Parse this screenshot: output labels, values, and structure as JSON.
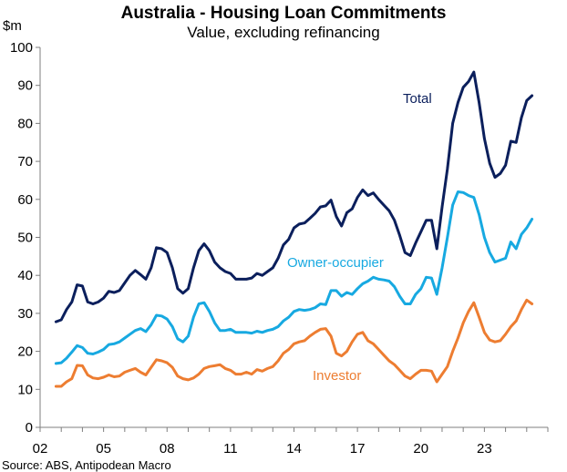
{
  "chart_data": {
    "type": "line",
    "title": "Australia - Housing Loan Commitments",
    "subtitle": "Value, excluding refinancing",
    "ylabel": "$m",
    "ylim": [
      0,
      100
    ],
    "yticks": [
      0,
      10,
      20,
      30,
      40,
      50,
      60,
      70,
      80,
      90,
      100
    ],
    "xlim": [
      2002,
      2026
    ],
    "xticks": [
      {
        "value": 2002,
        "label": "02"
      },
      {
        "value": 2005,
        "label": "05"
      },
      {
        "value": 2008,
        "label": "08"
      },
      {
        "value": 2011,
        "label": "11"
      },
      {
        "value": 2014,
        "label": "14"
      },
      {
        "value": 2017,
        "label": "17"
      },
      {
        "value": 2020,
        "label": "20"
      },
      {
        "value": 2023,
        "label": "23"
      }
    ],
    "grid": false,
    "source": "Source: ABS, Antipodean Macro",
    "series": [
      {
        "name": "Total",
        "color": "#0b1f5c",
        "points": [
          [
            2002.75,
            27.8
          ],
          [
            2003.0,
            28.3
          ],
          [
            2003.25,
            31
          ],
          [
            2003.5,
            33
          ],
          [
            2003.75,
            37.5
          ],
          [
            2004.0,
            37.2
          ],
          [
            2004.25,
            33
          ],
          [
            2004.5,
            32.5
          ],
          [
            2004.75,
            33
          ],
          [
            2005.0,
            34
          ],
          [
            2005.25,
            35.8
          ],
          [
            2005.5,
            35.5
          ],
          [
            2005.75,
            36
          ],
          [
            2006.0,
            38
          ],
          [
            2006.25,
            40
          ],
          [
            2006.5,
            41.3
          ],
          [
            2006.75,
            40.2
          ],
          [
            2007.0,
            39
          ],
          [
            2007.25,
            42
          ],
          [
            2007.5,
            47.3
          ],
          [
            2007.75,
            47
          ],
          [
            2008.0,
            46
          ],
          [
            2008.25,
            42
          ],
          [
            2008.5,
            36.5
          ],
          [
            2008.75,
            35.3
          ],
          [
            2009.0,
            36.5
          ],
          [
            2009.25,
            42
          ],
          [
            2009.5,
            46.5
          ],
          [
            2009.75,
            48.3
          ],
          [
            2010.0,
            46.5
          ],
          [
            2010.25,
            43.5
          ],
          [
            2010.5,
            42
          ],
          [
            2010.75,
            41
          ],
          [
            2011.0,
            40.5
          ],
          [
            2011.25,
            39
          ],
          [
            2011.5,
            39
          ],
          [
            2011.75,
            39
          ],
          [
            2012.0,
            39.3
          ],
          [
            2012.25,
            40.5
          ],
          [
            2012.5,
            40
          ],
          [
            2012.75,
            41
          ],
          [
            2013.0,
            42
          ],
          [
            2013.25,
            44.5
          ],
          [
            2013.5,
            48
          ],
          [
            2013.75,
            49.5
          ],
          [
            2014.0,
            52.5
          ],
          [
            2014.25,
            53.5
          ],
          [
            2014.5,
            53.8
          ],
          [
            2014.75,
            55
          ],
          [
            2015.0,
            56.3
          ],
          [
            2015.25,
            58
          ],
          [
            2015.5,
            58.3
          ],
          [
            2015.75,
            59.8
          ],
          [
            2016.0,
            55.5
          ],
          [
            2016.25,
            53
          ],
          [
            2016.5,
            56.5
          ],
          [
            2016.75,
            57.5
          ],
          [
            2017.0,
            60.5
          ],
          [
            2017.25,
            62.5
          ],
          [
            2017.5,
            61
          ],
          [
            2017.75,
            61.7
          ],
          [
            2018.0,
            60
          ],
          [
            2018.25,
            58.5
          ],
          [
            2018.5,
            57
          ],
          [
            2018.75,
            54.5
          ],
          [
            2019.0,
            50.5
          ],
          [
            2019.25,
            46
          ],
          [
            2019.5,
            45.2
          ],
          [
            2019.75,
            48.5
          ],
          [
            2020.0,
            51.5
          ],
          [
            2020.25,
            54.5
          ],
          [
            2020.5,
            54.5
          ],
          [
            2020.75,
            47
          ],
          [
            2021.0,
            58
          ],
          [
            2021.25,
            68
          ],
          [
            2021.5,
            80
          ],
          [
            2021.75,
            85.5
          ],
          [
            2022.0,
            89.5
          ],
          [
            2022.25,
            91
          ],
          [
            2022.5,
            93.5
          ],
          [
            2022.75,
            85.5
          ],
          [
            2023.0,
            76
          ],
          [
            2023.25,
            69.5
          ],
          [
            2023.5,
            65.8
          ],
          [
            2023.75,
            66.8
          ],
          [
            2024.0,
            69
          ],
          [
            2024.25,
            75.3
          ],
          [
            2024.5,
            75
          ],
          [
            2024.75,
            81.5
          ],
          [
            2025.0,
            86
          ],
          [
            2025.25,
            87.3
          ]
        ]
      },
      {
        "name": "Owner-occupier",
        "color": "#17a9e1",
        "points": [
          [
            2002.75,
            16.8
          ],
          [
            2003.0,
            17
          ],
          [
            2003.25,
            18.2
          ],
          [
            2003.5,
            19.8
          ],
          [
            2003.75,
            21.5
          ],
          [
            2004.0,
            21
          ],
          [
            2004.25,
            19.5
          ],
          [
            2004.5,
            19.3
          ],
          [
            2004.75,
            19.8
          ],
          [
            2005.0,
            20.5
          ],
          [
            2005.25,
            21.8
          ],
          [
            2005.5,
            22
          ],
          [
            2005.75,
            22.5
          ],
          [
            2006.0,
            23.5
          ],
          [
            2006.25,
            24.5
          ],
          [
            2006.5,
            25.5
          ],
          [
            2006.75,
            26
          ],
          [
            2007.0,
            25.2
          ],
          [
            2007.25,
            27
          ],
          [
            2007.5,
            29.5
          ],
          [
            2007.75,
            29.3
          ],
          [
            2008.0,
            28.5
          ],
          [
            2008.25,
            26.5
          ],
          [
            2008.5,
            23.3
          ],
          [
            2008.75,
            22.5
          ],
          [
            2009.0,
            24
          ],
          [
            2009.25,
            29
          ],
          [
            2009.5,
            32.5
          ],
          [
            2009.75,
            32.8
          ],
          [
            2010.0,
            30.5
          ],
          [
            2010.25,
            27.5
          ],
          [
            2010.5,
            25.5
          ],
          [
            2010.75,
            25.5
          ],
          [
            2011.0,
            25.8
          ],
          [
            2011.25,
            25
          ],
          [
            2011.5,
            25
          ],
          [
            2011.75,
            25
          ],
          [
            2012.0,
            24.8
          ],
          [
            2012.25,
            25.3
          ],
          [
            2012.5,
            25
          ],
          [
            2012.75,
            25.5
          ],
          [
            2013.0,
            25.8
          ],
          [
            2013.25,
            26.5
          ],
          [
            2013.5,
            28
          ],
          [
            2013.75,
            29
          ],
          [
            2014.0,
            30.5
          ],
          [
            2014.25,
            31
          ],
          [
            2014.5,
            30.8
          ],
          [
            2014.75,
            31
          ],
          [
            2015.0,
            31.5
          ],
          [
            2015.25,
            32.5
          ],
          [
            2015.5,
            32.3
          ],
          [
            2015.75,
            36
          ],
          [
            2016.0,
            36
          ],
          [
            2016.25,
            34.5
          ],
          [
            2016.5,
            35.5
          ],
          [
            2016.75,
            35
          ],
          [
            2017.0,
            36.5
          ],
          [
            2017.25,
            37.8
          ],
          [
            2017.5,
            38.5
          ],
          [
            2017.75,
            39.5
          ],
          [
            2018.0,
            39
          ],
          [
            2018.25,
            38.8
          ],
          [
            2018.5,
            38.5
          ],
          [
            2018.75,
            37
          ],
          [
            2019.0,
            34.5
          ],
          [
            2019.25,
            32.5
          ],
          [
            2019.5,
            32.5
          ],
          [
            2019.75,
            35
          ],
          [
            2020.0,
            36.5
          ],
          [
            2020.25,
            39.5
          ],
          [
            2020.5,
            39.3
          ],
          [
            2020.75,
            35
          ],
          [
            2021.0,
            42
          ],
          [
            2021.25,
            50
          ],
          [
            2021.5,
            58.5
          ],
          [
            2021.75,
            62
          ],
          [
            2022.0,
            61.8
          ],
          [
            2022.25,
            61
          ],
          [
            2022.5,
            60.5
          ],
          [
            2022.75,
            56
          ],
          [
            2023.0,
            50
          ],
          [
            2023.25,
            46
          ],
          [
            2023.5,
            43.5
          ],
          [
            2023.75,
            44
          ],
          [
            2024.0,
            44.5
          ],
          [
            2024.25,
            48.8
          ],
          [
            2024.5,
            47
          ],
          [
            2024.75,
            50.8
          ],
          [
            2025.0,
            52.5
          ],
          [
            2025.25,
            54.8
          ]
        ]
      },
      {
        "name": "Investor",
        "color": "#ed7d31",
        "points": [
          [
            2002.75,
            10.8
          ],
          [
            2003.0,
            10.8
          ],
          [
            2003.25,
            12
          ],
          [
            2003.5,
            12.8
          ],
          [
            2003.75,
            16.3
          ],
          [
            2004.0,
            16.2
          ],
          [
            2004.25,
            13.8
          ],
          [
            2004.5,
            13
          ],
          [
            2004.75,
            12.8
          ],
          [
            2005.0,
            13.2
          ],
          [
            2005.25,
            13.8
          ],
          [
            2005.5,
            13.3
          ],
          [
            2005.75,
            13.5
          ],
          [
            2006.0,
            14.5
          ],
          [
            2006.25,
            15
          ],
          [
            2006.5,
            15.5
          ],
          [
            2006.75,
            14.5
          ],
          [
            2007.0,
            13.8
          ],
          [
            2007.25,
            15.8
          ],
          [
            2007.5,
            17.8
          ],
          [
            2007.75,
            17.5
          ],
          [
            2008.0,
            17
          ],
          [
            2008.25,
            15.8
          ],
          [
            2008.5,
            13.5
          ],
          [
            2008.75,
            12.8
          ],
          [
            2009.0,
            12.5
          ],
          [
            2009.25,
            13
          ],
          [
            2009.5,
            14
          ],
          [
            2009.75,
            15.5
          ],
          [
            2010.0,
            16
          ],
          [
            2010.25,
            16.2
          ],
          [
            2010.5,
            16.5
          ],
          [
            2010.75,
            15.5
          ],
          [
            2011.0,
            15
          ],
          [
            2011.25,
            14
          ],
          [
            2011.5,
            14
          ],
          [
            2011.75,
            14.5
          ],
          [
            2012.0,
            14
          ],
          [
            2012.25,
            15.2
          ],
          [
            2012.5,
            14.8
          ],
          [
            2012.75,
            15.5
          ],
          [
            2013.0,
            16
          ],
          [
            2013.25,
            17.5
          ],
          [
            2013.5,
            19.5
          ],
          [
            2013.75,
            20.5
          ],
          [
            2014.0,
            22
          ],
          [
            2014.25,
            22.5
          ],
          [
            2014.5,
            22.8
          ],
          [
            2014.75,
            24
          ],
          [
            2015.0,
            25
          ],
          [
            2015.25,
            25.8
          ],
          [
            2015.5,
            26
          ],
          [
            2015.75,
            24
          ],
          [
            2016.0,
            19.5
          ],
          [
            2016.25,
            18.8
          ],
          [
            2016.5,
            20
          ],
          [
            2016.75,
            22.5
          ],
          [
            2017.0,
            24.5
          ],
          [
            2017.25,
            25
          ],
          [
            2017.5,
            22.8
          ],
          [
            2017.75,
            22
          ],
          [
            2018.0,
            20.5
          ],
          [
            2018.25,
            19
          ],
          [
            2018.5,
            17.5
          ],
          [
            2018.75,
            16.5
          ],
          [
            2019.0,
            15
          ],
          [
            2019.25,
            13.5
          ],
          [
            2019.5,
            12.8
          ],
          [
            2019.75,
            14
          ],
          [
            2020.0,
            15
          ],
          [
            2020.25,
            15
          ],
          [
            2020.5,
            14.8
          ],
          [
            2020.75,
            12
          ],
          [
            2021.0,
            14
          ],
          [
            2021.25,
            16
          ],
          [
            2021.5,
            20
          ],
          [
            2021.75,
            23.5
          ],
          [
            2022.0,
            27.5
          ],
          [
            2022.25,
            30.5
          ],
          [
            2022.5,
            32.8
          ],
          [
            2022.75,
            29
          ],
          [
            2023.0,
            25
          ],
          [
            2023.25,
            23
          ],
          [
            2023.5,
            22.5
          ],
          [
            2023.75,
            22.8
          ],
          [
            2024.0,
            24.5
          ],
          [
            2024.25,
            26.5
          ],
          [
            2024.5,
            28
          ],
          [
            2024.75,
            31
          ],
          [
            2025.0,
            33.5
          ],
          [
            2025.25,
            32.5
          ]
        ]
      }
    ]
  }
}
